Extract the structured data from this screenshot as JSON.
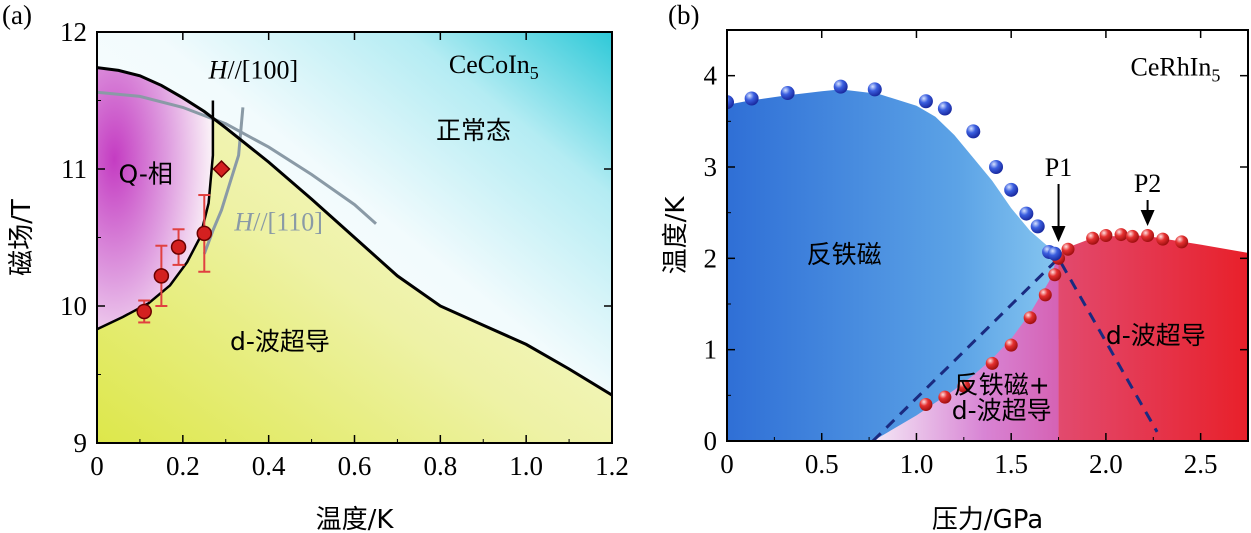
{
  "chart_data": [
    {
      "type": "scatter",
      "panel_label": "(a)",
      "xlabel": "温度/K",
      "ylabel": "磁场/T",
      "xlim": [
        0,
        1.2
      ],
      "ylim": [
        9,
        12
      ],
      "xticks": [
        "0",
        "0.2",
        "0.4",
        "0.6",
        "0.8",
        "1.0",
        "1.2"
      ],
      "yticks": [
        "9",
        "10",
        "11",
        "12"
      ],
      "x_tick_values": [
        0,
        0.2,
        0.4,
        0.6,
        0.8,
        1.0,
        1.2
      ],
      "y_tick_values": [
        9,
        10,
        11,
        12
      ],
      "material": "CeCoIn",
      "material_sub": "5",
      "region_labels": {
        "q_phase": "Q-相",
        "normal": "正常态",
        "d_wave": "d-波超导"
      },
      "annotations": {
        "h100_prefix": "H",
        "h100_suffix": "//[100]",
        "h110_prefix": "H",
        "h110_suffix": "//[110]"
      },
      "upper_critical_field_H100": {
        "x": [
          0,
          0.05,
          0.1,
          0.15,
          0.2,
          0.25,
          0.3,
          0.4,
          0.5,
          0.6,
          0.7,
          0.8,
          0.9,
          1.0,
          1.1,
          1.2
        ],
        "y": [
          11.74,
          11.72,
          11.68,
          11.61,
          11.52,
          11.42,
          11.3,
          11.05,
          10.78,
          10.5,
          10.22,
          10.0,
          9.86,
          9.72,
          9.54,
          9.35
        ]
      },
      "upper_critical_field_H110": {
        "x": [
          0,
          0.1,
          0.2,
          0.3,
          0.4,
          0.5,
          0.6,
          0.65
        ],
        "y": [
          11.56,
          11.53,
          11.45,
          11.33,
          11.16,
          10.96,
          10.74,
          10.6
        ]
      },
      "q_phase_boundary_H100": {
        "x": [
          0.27,
          0.27,
          0.26,
          0.24,
          0.21,
          0.17,
          0.12,
          0.06,
          0
        ],
        "y": [
          11.5,
          11.1,
          10.75,
          10.5,
          10.32,
          10.15,
          10.02,
          9.92,
          9.83
        ]
      },
      "q_phase_boundary_H110": {
        "x": [
          0.34,
          0.33,
          0.31,
          0.29,
          0.27,
          0.25
        ],
        "y": [
          11.45,
          11.1,
          10.9,
          10.7,
          10.55,
          10.38
        ]
      },
      "points_circle": {
        "x": [
          0.11,
          0.15,
          0.19,
          0.25
        ],
        "y": [
          9.96,
          10.22,
          10.43,
          10.53
        ],
        "yerr": [
          0.08,
          0.22,
          0.13,
          0.28
        ]
      },
      "point_diamond": {
        "x": [
          0.29
        ],
        "y": [
          11.0
        ]
      },
      "colors": {
        "normal": "#2ec9d8",
        "q_phase": "#c840c0",
        "d_wave": "#e8ec70",
        "points": "#d42020",
        "errorbar": "#e04040"
      }
    },
    {
      "type": "scatter",
      "panel_label": "(b)",
      "xlabel": "压力/GPa",
      "ylabel": "温度/K",
      "xlim": [
        0,
        2.75
      ],
      "ylim": [
        0,
        4.5
      ],
      "xticks": [
        "0",
        "0.5",
        "1.0",
        "1.5",
        "2.0",
        "2.5"
      ],
      "yticks": [
        "0",
        "1",
        "2",
        "3",
        "4"
      ],
      "x_tick_values": [
        0,
        0.5,
        1.0,
        1.5,
        2.0,
        2.5
      ],
      "y_tick_values": [
        0,
        1,
        2,
        3,
        4
      ],
      "material": "CeRhIn",
      "material_sub": "5",
      "region_labels": {
        "afm": "反铁磁",
        "d_wave": "d-波超导",
        "coexist_line1": "反铁磁+",
        "coexist_line2": "d-波超导"
      },
      "markers": {
        "p1": "P1",
        "p2": "P2",
        "p1_x": 1.75,
        "p2_x": 2.22
      },
      "afm_transition_points": {
        "x": [
          0.0,
          0.13,
          0.32,
          0.6,
          0.78,
          1.05,
          1.15,
          1.3,
          1.42,
          1.5,
          1.58,
          1.64,
          1.7,
          1.73
        ],
        "y": [
          3.71,
          3.75,
          3.81,
          3.88,
          3.85,
          3.72,
          3.64,
          3.39,
          3.0,
          2.75,
          2.49,
          2.35,
          2.07,
          2.05
        ]
      },
      "sc_transition_points": {
        "x": [
          1.05,
          1.15,
          1.25,
          1.4,
          1.5,
          1.6,
          1.68,
          1.73,
          1.75,
          1.8,
          1.93,
          2.0,
          2.08,
          2.14,
          2.22,
          2.3,
          2.4
        ],
        "y": [
          0.4,
          0.48,
          0.6,
          0.85,
          1.05,
          1.35,
          1.6,
          1.82,
          2.0,
          2.1,
          2.22,
          2.25,
          2.26,
          2.24,
          2.25,
          2.21,
          2.18
        ]
      },
      "afm_dome": {
        "x": [
          0,
          0.1,
          0.3,
          0.5,
          0.6,
          0.8,
          1.0,
          1.1,
          1.2,
          1.3,
          1.4,
          1.5,
          1.6,
          1.7,
          1.75
        ],
        "y": [
          3.68,
          3.72,
          3.78,
          3.83,
          3.85,
          3.8,
          3.67,
          3.55,
          3.35,
          3.1,
          2.85,
          2.55,
          2.3,
          2.12,
          2.05
        ]
      },
      "sc_dome": {
        "x": [
          0.77,
          1.0,
          1.1,
          1.2,
          1.3,
          1.4,
          1.5,
          1.6,
          1.7,
          1.75,
          1.8,
          1.9,
          2.0,
          2.2,
          2.5,
          2.75
        ],
        "y": [
          0.0,
          0.28,
          0.42,
          0.56,
          0.72,
          0.9,
          1.12,
          1.4,
          1.75,
          2.05,
          2.12,
          2.2,
          2.24,
          2.25,
          2.15,
          2.06
        ]
      },
      "dashed_line": {
        "x": [
          0.77,
          1.75,
          2.27
        ],
        "y": [
          0.0,
          2.0,
          0.1
        ]
      },
      "colors": {
        "afm": "#3f7ed8",
        "sc": "#e33848",
        "coexist": "#d070c8",
        "afm_points": "#1f3ec8",
        "sc_points": "#d82020",
        "dash": "#1a2a80",
        "coexist_text": "#f0e040"
      }
    }
  ]
}
